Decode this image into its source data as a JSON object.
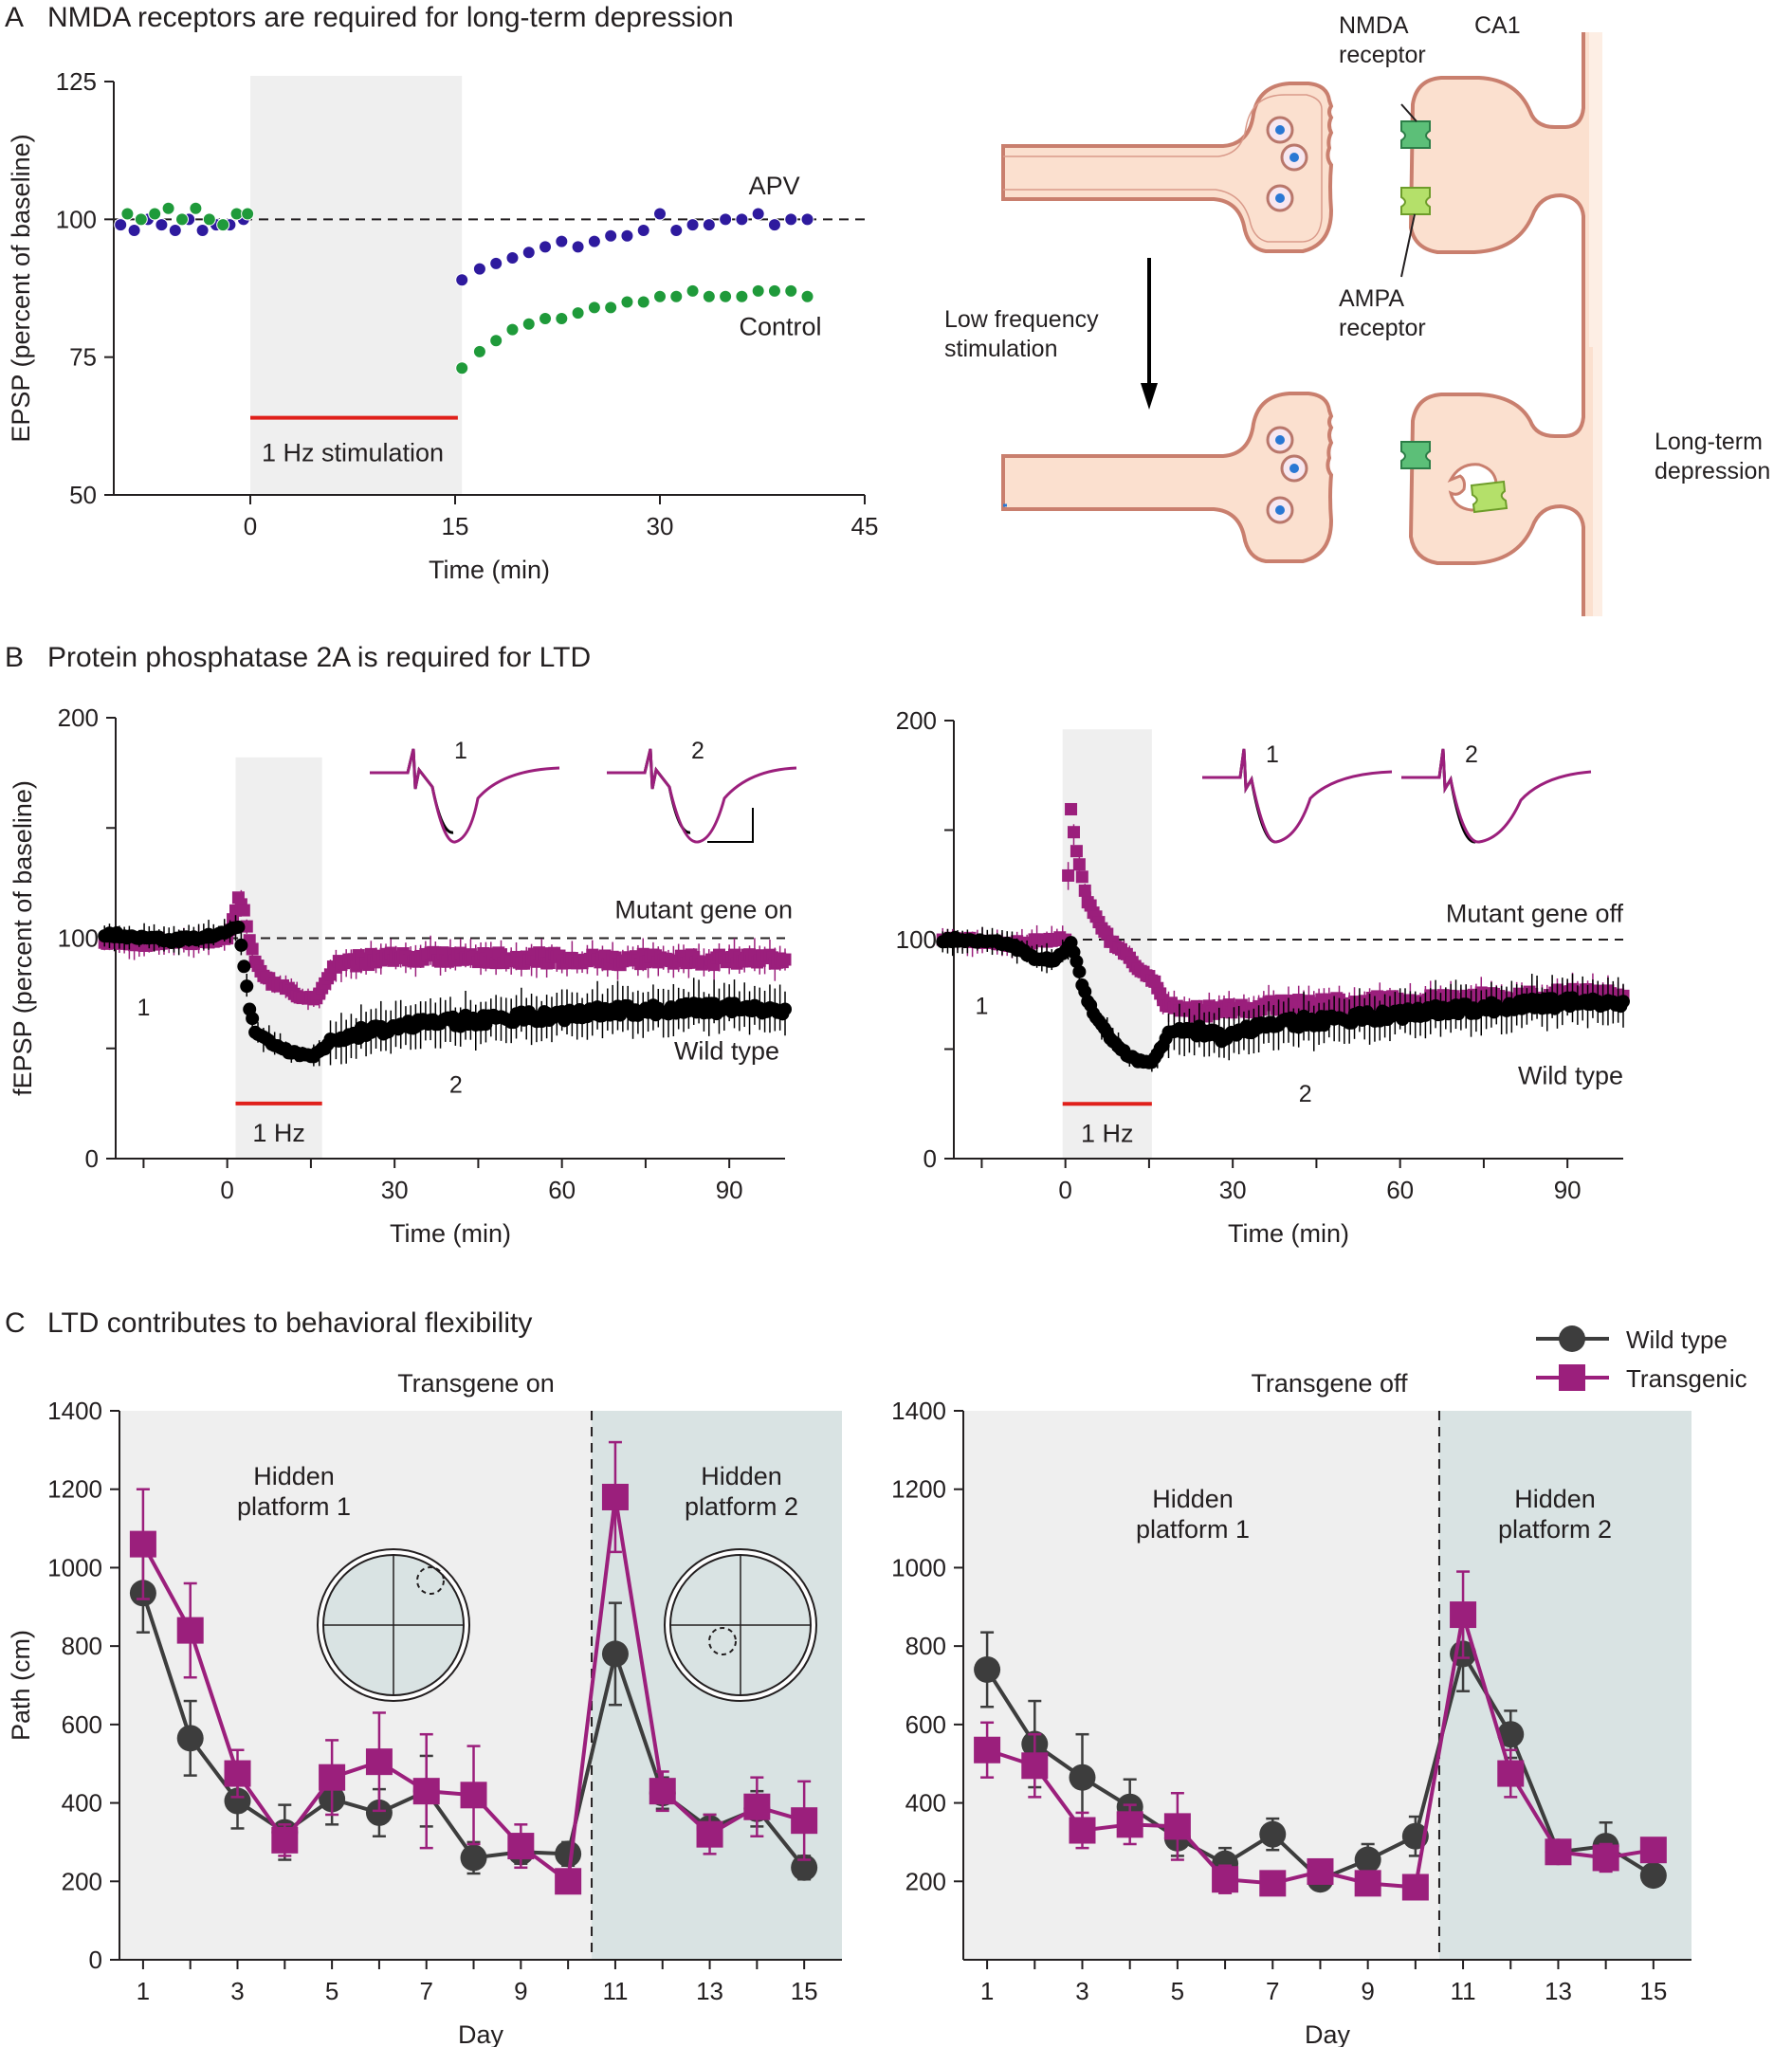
{
  "panels": {
    "A": {
      "letter": "A",
      "title": "NMDA receptors are required for long-term depression"
    },
    "B": {
      "letter": "B",
      "title": "Protein phosphatase 2A is required for LTD"
    },
    "C": {
      "letter": "C",
      "title": "LTD contributes to behavioral flexibility"
    }
  },
  "diagram": {
    "nmda_label_1": "NMDA",
    "nmda_label_2": "receptor",
    "ca1_label": "CA1",
    "ampa_label_1": "AMPA",
    "ampa_label_2": "receptor",
    "arrow_label_1": "Low frequency",
    "arrow_label_2": "stimulation",
    "ltd_label_1": "Long-term",
    "ltd_label_2": "depression"
  },
  "chart_data": [
    {
      "id": "A",
      "type": "scatter",
      "xlabel": "Time (min)",
      "ylabel": "EPSP (percent of baseline)",
      "xlim": [
        -10,
        45
      ],
      "ylim": [
        50,
        125
      ],
      "xticks": [
        0,
        15,
        30,
        45
      ],
      "yticks": [
        50,
        75,
        100,
        125
      ],
      "baseline": 100,
      "stim_region": [
        0,
        15.5
      ],
      "stim_label": "1 Hz stimulation",
      "stim_bar_y": 64,
      "series": [
        {
          "name": "APV",
          "color": "#2e1a9e",
          "x": [
            -9.5,
            -8.5,
            -7.5,
            -6.5,
            -5.5,
            -4.5,
            -3.5,
            -2.5,
            -1.5,
            -0.5,
            15.5,
            16.8,
            18,
            19.2,
            20.4,
            21.6,
            22.8,
            24,
            25.2,
            26.4,
            27.6,
            28.8,
            30,
            31.2,
            32.4,
            33.6,
            34.8,
            36,
            37.2,
            38.4,
            39.6,
            40.8
          ],
          "y": [
            99,
            98,
            100,
            99,
            98,
            100,
            98,
            99,
            99,
            100,
            89,
            91,
            92,
            93,
            94,
            95,
            96,
            95,
            96,
            97,
            97,
            98,
            101,
            98,
            99,
            99,
            100,
            100,
            101,
            99,
            100,
            100
          ]
        },
        {
          "name": "Control",
          "color": "#1f9a3a",
          "x": [
            -9,
            -8,
            -7,
            -6,
            -5,
            -4,
            -3,
            -2,
            -1,
            -0.2,
            15.5,
            16.8,
            18,
            19.2,
            20.4,
            21.6,
            22.8,
            24,
            25.2,
            26.4,
            27.6,
            28.8,
            30,
            31.2,
            32.4,
            33.6,
            34.8,
            36,
            37.2,
            38.4,
            39.6,
            40.8
          ],
          "y": [
            101,
            100,
            101,
            102,
            100,
            102,
            100,
            99,
            101,
            101,
            73,
            76,
            78,
            80,
            81,
            82,
            82,
            83,
            84,
            84,
            85,
            85,
            86,
            86,
            87,
            86,
            86,
            86,
            87,
            87,
            87,
            86
          ]
        }
      ]
    },
    {
      "id": "B1",
      "type": "line",
      "xlabel": "Time (min)",
      "ylabel": "fEPSP (percent of baseline)",
      "xlim": [
        -20,
        100
      ],
      "ylim": [
        0,
        200
      ],
      "xticks": [
        0,
        30,
        60,
        90
      ],
      "yticks": [
        0,
        100,
        200
      ],
      "baseline": 100,
      "stim_region": [
        1.5,
        17
      ],
      "stim_label": "1 Hz",
      "stim_bar_y": 25,
      "inset_labels": [
        "1",
        "2"
      ],
      "curve_labels": {
        "top": "Mutant gene on",
        "bottom": "Wild type",
        "p1": "1",
        "p2": "2"
      },
      "series": [
        {
          "name": "Mutant gene on",
          "color": "#9b1f7c",
          "x": [
            -22,
            -18,
            -14,
            -10,
            -6,
            -2,
            0,
            2,
            3,
            4,
            5,
            6,
            8,
            10,
            12,
            14,
            16,
            18,
            20,
            24,
            28,
            32,
            40,
            50,
            60,
            70,
            80,
            90,
            100
          ],
          "y": [
            98,
            98,
            97,
            99,
            98,
            99,
            100,
            118,
            112,
            100,
            90,
            85,
            80,
            78,
            75,
            73,
            72,
            82,
            88,
            90,
            91,
            92,
            91,
            91,
            91,
            90,
            91,
            90,
            91
          ]
        },
        {
          "name": "Wild type",
          "color": "#000000",
          "x": [
            -22,
            -18,
            -14,
            -10,
            -6,
            -2,
            0,
            2,
            3,
            4,
            5,
            6,
            8,
            10,
            12,
            14,
            16,
            18,
            20,
            24,
            28,
            32,
            40,
            50,
            60,
            70,
            80,
            90,
            100
          ],
          "y": [
            102,
            101,
            100,
            99,
            100,
            101,
            103,
            105,
            88,
            68,
            58,
            55,
            52,
            50,
            48,
            47,
            47,
            52,
            55,
            57,
            59,
            60,
            62,
            64,
            65,
            67,
            68,
            68,
            68
          ]
        }
      ]
    },
    {
      "id": "B2",
      "type": "line",
      "xlabel": "Time (min)",
      "ylabel": "",
      "xlim": [
        -20,
        100
      ],
      "ylim": [
        0,
        200
      ],
      "xticks": [
        0,
        30,
        60,
        90
      ],
      "yticks": [
        0,
        100,
        200
      ],
      "baseline": 100,
      "stim_region": [
        -0.5,
        15.5
      ],
      "stim_label": "1 Hz",
      "stim_bar_y": 25,
      "inset_labels": [
        "1",
        "2"
      ],
      "curve_labels": {
        "top": "Mutant gene off",
        "bottom": "Wild type",
        "p1": "1",
        "p2": "2"
      },
      "series": [
        {
          "name": "Mutant gene off",
          "color": "#9b1f7c",
          "x": [
            -22,
            -18,
            -14,
            -10,
            -6,
            -2,
            0,
            1,
            2,
            3,
            4,
            6,
            8,
            10,
            12,
            14,
            16,
            18,
            20,
            24,
            28,
            32,
            40,
            50,
            60,
            70,
            80,
            90,
            100
          ],
          "y": [
            100,
            100,
            99,
            98,
            99,
            100,
            100,
            160,
            140,
            128,
            118,
            108,
            100,
            95,
            90,
            85,
            80,
            70,
            68,
            67,
            68,
            69,
            70,
            71,
            72,
            73,
            74,
            75,
            75
          ]
        },
        {
          "name": "Wild type",
          "color": "#000000",
          "x": [
            -22,
            -18,
            -14,
            -10,
            -6,
            -2,
            0,
            1,
            2,
            3,
            4,
            6,
            8,
            10,
            12,
            14,
            16,
            18,
            20,
            24,
            28,
            32,
            40,
            50,
            60,
            70,
            80,
            90,
            100
          ],
          "y": [
            100,
            100,
            99,
            98,
            92,
            90,
            95,
            98,
            90,
            80,
            72,
            62,
            55,
            50,
            46,
            44,
            45,
            55,
            60,
            58,
            56,
            58,
            62,
            64,
            66,
            68,
            70,
            71,
            72
          ]
        }
      ]
    },
    {
      "id": "C1",
      "type": "line",
      "title": "Transgene on",
      "xlabel": "Day",
      "ylabel": "Path (cm)",
      "xlim": [
        0.5,
        15.8
      ],
      "ylim": [
        0,
        1400
      ],
      "xticks": [
        1,
        3,
        5,
        7,
        9,
        11,
        13,
        15
      ],
      "yticks": [
        0,
        200,
        400,
        600,
        800,
        1000,
        1200,
        1400
      ],
      "region_split": 10.5,
      "region_labels": [
        [
          "Hidden",
          "platform 1"
        ],
        [
          "Hidden",
          "platform 2"
        ]
      ],
      "series": [
        {
          "name": "Wild type",
          "color": "#3d3d3d",
          "x": [
            1,
            2,
            3,
            4,
            5,
            6,
            7,
            8,
            9,
            10,
            11,
            12,
            13,
            14,
            15
          ],
          "y": [
            935,
            565,
            405,
            325,
            410,
            375,
            430,
            260,
            275,
            270,
            780,
            425,
            335,
            385,
            235
          ],
          "err": [
            100,
            95,
            70,
            70,
            65,
            60,
            90,
            40,
            30,
            30,
            130,
            40,
            35,
            45,
            30
          ]
        },
        {
          "name": "Transgenic",
          "color": "#9b1f7c",
          "x": [
            1,
            2,
            3,
            4,
            5,
            6,
            7,
            8,
            9,
            10,
            11,
            12,
            13,
            14,
            15
          ],
          "y": [
            1060,
            840,
            475,
            305,
            465,
            505,
            430,
            420,
            290,
            200,
            1180,
            430,
            320,
            390,
            355
          ],
          "err": [
            140,
            120,
            60,
            40,
            95,
            125,
            145,
            125,
            55,
            25,
            140,
            50,
            50,
            75,
            100
          ]
        }
      ]
    },
    {
      "id": "C2",
      "type": "line",
      "title": "Transgene off",
      "xlabel": "Day",
      "ylabel": "",
      "xlim": [
        0.5,
        15.8
      ],
      "ylim": [
        0,
        1400
      ],
      "xticks": [
        1,
        3,
        5,
        7,
        9,
        11,
        13,
        15
      ],
      "yticks": [
        200,
        400,
        600,
        800,
        1000,
        1200,
        1400
      ],
      "region_split": 10.5,
      "region_labels": [
        [
          "Hidden",
          "platform 1"
        ],
        [
          "Hidden",
          "platform 2"
        ]
      ],
      "series": [
        {
          "name": "Wild type",
          "color": "#3d3d3d",
          "x": [
            1,
            2,
            3,
            4,
            5,
            6,
            7,
            8,
            9,
            10,
            11,
            12,
            13,
            14,
            15
          ],
          "y": [
            740,
            550,
            465,
            390,
            310,
            245,
            320,
            205,
            255,
            315,
            780,
            575,
            275,
            290,
            215
          ],
          "err": [
            95,
            110,
            110,
            70,
            45,
            40,
            40,
            20,
            40,
            50,
            95,
            60,
            25,
            60,
            25
          ]
        },
        {
          "name": "Transgenic",
          "color": "#9b1f7c",
          "x": [
            1,
            2,
            3,
            4,
            5,
            6,
            7,
            8,
            9,
            10,
            11,
            12,
            13,
            14,
            15
          ],
          "y": [
            535,
            495,
            330,
            345,
            340,
            205,
            195,
            225,
            195,
            185,
            880,
            475,
            275,
            260,
            280
          ],
          "err": [
            70,
            80,
            45,
            50,
            85,
            35,
            25,
            25,
            25,
            25,
            110,
            60,
            25,
            35,
            25
          ]
        }
      ]
    }
  ],
  "legend": {
    "items": [
      {
        "label": "Wild type",
        "color": "#3d3d3d",
        "marker": "circle"
      },
      {
        "label": "Transgenic",
        "color": "#9b1f7c",
        "marker": "square"
      }
    ]
  }
}
